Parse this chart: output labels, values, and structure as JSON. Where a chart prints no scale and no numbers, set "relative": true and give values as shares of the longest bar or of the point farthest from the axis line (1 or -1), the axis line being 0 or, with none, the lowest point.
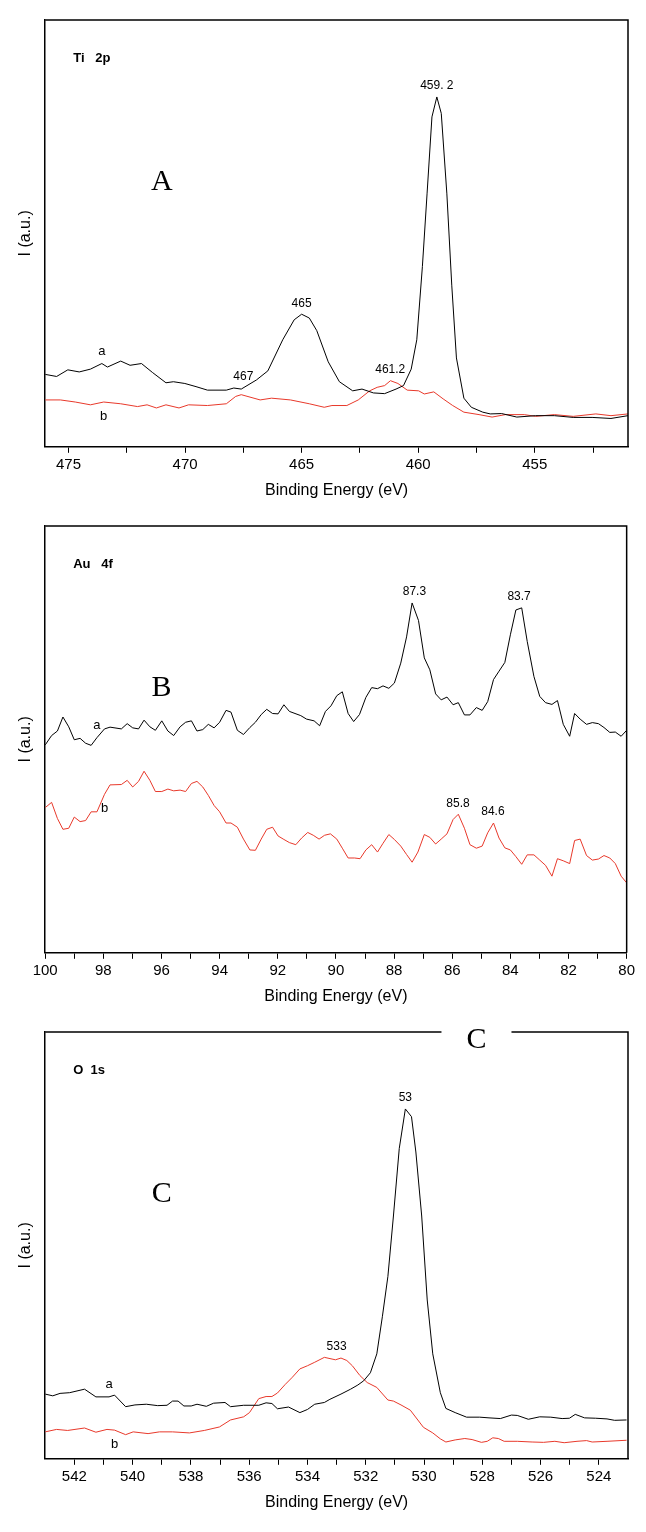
{
  "chart_data": [
    {
      "type": "line",
      "relative": true,
      "xlabel": "Binding Energy (eV)",
      "ylabel": "I (a.u.)",
      "tick_labels": "x",
      "xlim": [
        476,
        451
      ],
      "xticks": [
        475,
        {
          "value": 472.5,
          "label": null
        },
        470,
        {
          "value": 467.5,
          "label": null
        },
        465,
        {
          "value": 462.5,
          "label": null
        },
        460,
        {
          "value": 457.5,
          "label": null
        },
        455,
        {
          "value": 452.5,
          "label": null
        }
      ],
      "annotations": [
        "Ti   2p",
        "A",
        {
          "text": "459. 2",
          "x": 459.2,
          "y": 1
        },
        {
          "text": "465",
          "x": 465,
          "y": 0.379
        },
        {
          "text": "467",
          "x": 467.5,
          "y": 0.168
        },
        {
          "text": "461.2",
          "x": 461.2,
          "y": 0.189
        }
      ],
      "series": [
        {
          "name": "a",
          "color": "#000000",
          "x": [
            476.0,
            475.51,
            475.03,
            474.54,
            474.06,
            473.57,
            473.33,
            472.76,
            472.36,
            471.87,
            471.39,
            470.82,
            470.5,
            470.01,
            469.53,
            469.04,
            468.23,
            467.91,
            467.59,
            466.94,
            466.45,
            465.81,
            465.32,
            465.0,
            464.67,
            464.35,
            463.86,
            463.38,
            462.81,
            462.41,
            461.92,
            461.44,
            460.95,
            460.63,
            460.3,
            460.06,
            459.82,
            459.62,
            459.41,
            459.2,
            459.01,
            458.77,
            458.56,
            458.36,
            458.04,
            457.72,
            457.23,
            456.91,
            456.42,
            455.77,
            454.96,
            454.16,
            453.35,
            452.54,
            451.73,
            451.0
          ],
          "values": [
            0.207,
            0.201,
            0.22,
            0.214,
            0.222,
            0.238,
            0.228,
            0.245,
            0.233,
            0.238,
            0.212,
            0.183,
            0.186,
            0.181,
            0.172,
            0.162,
            0.162,
            0.168,
            0.165,
            0.191,
            0.217,
            0.306,
            0.363,
            0.379,
            0.368,
            0.332,
            0.243,
            0.186,
            0.16,
            0.165,
            0.154,
            0.152,
            0.165,
            0.175,
            0.222,
            0.306,
            0.515,
            0.723,
            0.943,
            1,
            0.953,
            0.723,
            0.462,
            0.254,
            0.139,
            0.113,
            0.099,
            0.094,
            0.095,
            0.085,
            0.089,
            0.089,
            0.084,
            0.084,
            0.081,
            0.089
          ]
        },
        {
          "name": "b",
          "color": "#e8392b",
          "x": [
            476.0,
            475.35,
            474.71,
            474.06,
            473.49,
            472.76,
            472.04,
            471.63,
            471.23,
            470.82,
            470.26,
            469.85,
            469.04,
            468.23,
            467.83,
            467.59,
            466.78,
            466.29,
            465.48,
            464.67,
            464.03,
            463.7,
            463.06,
            462.57,
            462.08,
            461.76,
            461.44,
            461.19,
            460.87,
            460.47,
            459.98,
            459.74,
            459.33,
            458.93,
            458.52,
            458.04,
            457.39,
            456.83,
            456.26,
            455.45,
            454.96,
            454.16,
            453.35,
            452.38,
            451.73,
            451.0
          ],
          "values": [
            0.134,
            0.134,
            0.128,
            0.12,
            0.128,
            0.123,
            0.115,
            0.12,
            0.111,
            0.12,
            0.111,
            0.12,
            0.118,
            0.123,
            0.144,
            0.149,
            0.134,
            0.139,
            0.134,
            0.123,
            0.113,
            0.118,
            0.118,
            0.134,
            0.16,
            0.17,
            0.175,
            0.189,
            0.181,
            0.162,
            0.16,
            0.151,
            0.157,
            0.137,
            0.118,
            0.099,
            0.092,
            0.085,
            0.092,
            0.092,
            0.087,
            0.092,
            0.087,
            0.094,
            0.089,
            0.094
          ]
        }
      ]
    },
    {
      "type": "line",
      "relative": true,
      "xlabel": "Binding Energy (eV)",
      "ylabel": "I (a.u.)",
      "tick_labels": "x",
      "xlim": [
        100,
        80
      ],
      "xticks": [
        100,
        {
          "value": 99,
          "label": null
        },
        98,
        {
          "value": 97,
          "label": null
        },
        96,
        {
          "value": 95,
          "label": null
        },
        94,
        {
          "value": 93,
          "label": null
        },
        92,
        {
          "value": 91,
          "label": null
        },
        90,
        {
          "value": 89,
          "label": null
        },
        88,
        {
          "value": 87,
          "label": null
        },
        86,
        {
          "value": 85,
          "label": null
        },
        84,
        {
          "value": 83,
          "label": null
        },
        82,
        {
          "value": 81,
          "label": null
        },
        80
      ],
      "annotations": [
        "Au   4f",
        "B",
        {
          "text": "87.3",
          "x": 87.3,
          "y": 1
        },
        {
          "text": "83.7",
          "x": 83.7,
          "y": 0.986
        },
        {
          "text": "85.8",
          "x": 85.8,
          "y": 0.396
        },
        {
          "text": "84.6",
          "x": 84.6,
          "y": 0.371
        }
      ],
      "series": [
        {
          "name": "a",
          "color": "#000000",
          "x": [
            100.0,
            99.78,
            99.58,
            99.39,
            99.19,
            99.0,
            98.8,
            98.61,
            98.42,
            98.22,
            97.96,
            97.77,
            97.38,
            97.18,
            96.99,
            96.79,
            96.6,
            96.4,
            96.21,
            95.99,
            95.78,
            95.58,
            95.36,
            95.17,
            94.97,
            94.78,
            94.58,
            94.39,
            94.19,
            94.0,
            93.78,
            93.61,
            93.39,
            93.18,
            92.96,
            92.77,
            92.57,
            92.38,
            92.18,
            91.99,
            91.79,
            91.6,
            91.21,
            91.01,
            90.75,
            90.56,
            90.36,
            90.17,
            89.97,
            89.78,
            89.58,
            89.39,
            89.19,
            88.97,
            88.77,
            88.57,
            88.38,
            88.18,
            87.99,
            87.77,
            87.57,
            87.38,
            87.16,
            86.96,
            86.77,
            86.57,
            86.38,
            86.18,
            85.97,
            85.79,
            85.58,
            85.39,
            85.17,
            84.97,
            84.78,
            84.58,
            84.39,
            84.19,
            84.0,
            83.81,
            83.61,
            83.42,
            83.19,
            82.99,
            82.79,
            82.57,
            82.38,
            82.18,
            81.96,
            81.79,
            81.6,
            81.38,
            81.18,
            80.97,
            80.78,
            80.58,
            80.39,
            80.19,
            80.0
          ],
          "values": [
            0.594,
            0.621,
            0.634,
            0.674,
            0.646,
            0.609,
            0.613,
            0.599,
            0.593,
            0.615,
            0.64,
            0.645,
            0.64,
            0.655,
            0.643,
            0.64,
            0.665,
            0.646,
            0.636,
            0.663,
            0.634,
            0.621,
            0.646,
            0.659,
            0.663,
            0.634,
            0.638,
            0.653,
            0.643,
            0.659,
            0.693,
            0.688,
            0.636,
            0.624,
            0.644,
            0.659,
            0.681,
            0.696,
            0.684,
            0.683,
            0.709,
            0.69,
            0.678,
            0.668,
            0.663,
            0.649,
            0.69,
            0.706,
            0.735,
            0.746,
            0.684,
            0.661,
            0.681,
            0.73,
            0.758,
            0.755,
            0.763,
            0.756,
            0.771,
            0.828,
            0.903,
            1,
            0.95,
            0.843,
            0.809,
            0.74,
            0.723,
            0.731,
            0.709,
            0.715,
            0.68,
            0.68,
            0.701,
            0.693,
            0.718,
            0.781,
            0.805,
            0.83,
            0.909,
            0.98,
            0.986,
            0.89,
            0.79,
            0.733,
            0.715,
            0.71,
            0.721,
            0.653,
            0.619,
            0.684,
            0.668,
            0.653,
            0.658,
            0.655,
            0.644,
            0.63,
            0.631,
            0.619,
            0.636
          ]
        },
        {
          "name": "b",
          "color": "#e8392b",
          "x": [
            100.0,
            99.78,
            99.58,
            99.39,
            99.19,
            99.0,
            98.8,
            98.61,
            98.42,
            98.22,
            97.96,
            97.77,
            97.38,
            97.18,
            96.99,
            96.79,
            96.6,
            96.4,
            96.21,
            95.99,
            95.78,
            95.58,
            95.36,
            95.17,
            94.97,
            94.78,
            94.58,
            94.39,
            94.19,
            94.0,
            93.78,
            93.61,
            93.39,
            93.18,
            92.96,
            92.77,
            92.57,
            92.38,
            92.18,
            91.99,
            91.79,
            91.6,
            91.38,
            91.18,
            90.97,
            90.78,
            90.58,
            90.39,
            90.19,
            89.97,
            89.78,
            89.58,
            89.36,
            89.17,
            88.97,
            88.77,
            88.57,
            88.38,
            88.18,
            87.99,
            87.77,
            87.57,
            87.38,
            87.18,
            86.96,
            86.77,
            86.57,
            86.38,
            86.18,
            85.97,
            85.79,
            85.58,
            85.39,
            85.17,
            84.97,
            84.78,
            84.58,
            84.39,
            84.19,
            84.0,
            83.81,
            83.61,
            83.42,
            83.19,
            82.99,
            82.79,
            82.57,
            82.38,
            82.18,
            81.96,
            81.79,
            81.6,
            81.38,
            81.18,
            80.97,
            80.78,
            80.58,
            80.39,
            80.19,
            80.0
          ],
          "values": [
            0.415,
            0.43,
            0.384,
            0.353,
            0.356,
            0.388,
            0.375,
            0.378,
            0.403,
            0.403,
            0.453,
            0.48,
            0.481,
            0.493,
            0.474,
            0.49,
            0.519,
            0.493,
            0.461,
            0.461,
            0.468,
            0.463,
            0.465,
            0.461,
            0.484,
            0.49,
            0.474,
            0.45,
            0.421,
            0.403,
            0.371,
            0.371,
            0.359,
            0.325,
            0.294,
            0.293,
            0.325,
            0.353,
            0.359,
            0.334,
            0.324,
            0.315,
            0.309,
            0.328,
            0.344,
            0.336,
            0.325,
            0.336,
            0.34,
            0.325,
            0.299,
            0.271,
            0.271,
            0.269,
            0.294,
            0.309,
            0.288,
            0.313,
            0.338,
            0.324,
            0.305,
            0.281,
            0.259,
            0.288,
            0.338,
            0.33,
            0.311,
            0.325,
            0.34,
            0.381,
            0.396,
            0.356,
            0.309,
            0.299,
            0.305,
            0.343,
            0.371,
            0.328,
            0.3,
            0.294,
            0.275,
            0.253,
            0.28,
            0.28,
            0.265,
            0.25,
            0.219,
            0.269,
            0.263,
            0.255,
            0.321,
            0.325,
            0.278,
            0.265,
            0.268,
            0.278,
            0.271,
            0.255,
            0.219,
            0.2
          ]
        }
      ]
    },
    {
      "type": "line",
      "relative": true,
      "xlabel": "Binding Energy (eV)",
      "ylabel": "I (a.u.)",
      "tick_labels": "x",
      "xlim": [
        543,
        523
      ],
      "xticks": [
        542,
        {
          "value": 541,
          "label": null
        },
        540,
        {
          "value": 539,
          "label": null
        },
        538,
        {
          "value": 537,
          "label": null
        },
        536,
        {
          "value": 535,
          "label": null
        },
        534,
        {
          "value": 533,
          "label": null
        },
        532,
        {
          "value": 531,
          "label": null
        },
        530,
        {
          "value": 529,
          "label": null
        },
        528,
        {
          "value": 527,
          "label": null
        },
        526,
        {
          "value": 525,
          "label": null
        },
        524
      ],
      "annotations": [
        "O  1s",
        "C",
        "C",
        {
          "text": "53",
          "x": 530.64,
          "y": 1
        },
        {
          "text": "533",
          "x": 533,
          "y": 0.29
        }
      ],
      "series": [
        {
          "name": "a",
          "color": "#000000",
          "x": [
            543.0,
            542.74,
            542.49,
            542.16,
            541.65,
            541.26,
            540.81,
            540.62,
            540.24,
            539.92,
            539.53,
            539.14,
            538.82,
            538.63,
            538.44,
            538.24,
            537.99,
            537.79,
            537.47,
            537.22,
            536.83,
            536.64,
            536.19,
            535.67,
            535.42,
            535.22,
            535.03,
            534.65,
            534.26,
            534.0,
            533.75,
            533.42,
            533.23,
            532.85,
            532.52,
            532.27,
            532.07,
            531.84,
            531.62,
            531.43,
            531.24,
            531.05,
            530.85,
            530.64,
            530.43,
            530.28,
            530.08,
            529.89,
            529.7,
            529.44,
            529.25,
            528.93,
            528.54,
            528.09,
            527.77,
            527.38,
            527.0,
            526.8,
            526.42,
            526.03,
            525.65,
            525.26,
            525.01,
            524.81,
            524.49,
            524.11,
            523.72,
            523.46,
            523.05
          ],
          "values": [
            0.185,
            0.18,
            0.187,
            0.189,
            0.199,
            0.177,
            0.177,
            0.182,
            0.149,
            0.154,
            0.156,
            0.152,
            0.153,
            0.165,
            0.165,
            0.151,
            0.151,
            0.156,
            0.15,
            0.159,
            0.161,
            0.149,
            0.153,
            0.153,
            0.16,
            0.158,
            0.143,
            0.148,
            0.132,
            0.141,
            0.156,
            0.161,
            0.17,
            0.185,
            0.199,
            0.211,
            0.223,
            0.246,
            0.3,
            0.406,
            0.521,
            0.694,
            0.887,
            1,
            0.978,
            0.877,
            0.694,
            0.454,
            0.3,
            0.189,
            0.144,
            0.132,
            0.119,
            0.119,
            0.117,
            0.115,
            0.125,
            0.124,
            0.113,
            0.12,
            0.119,
            0.115,
            0.116,
            0.127,
            0.117,
            0.116,
            0.114,
            0.11,
            0.111
          ]
        },
        {
          "name": "b",
          "color": "#e8392b",
          "x": [
            543.0,
            542.61,
            542.23,
            541.65,
            541.26,
            540.88,
            540.62,
            540.24,
            539.98,
            539.47,
            539.08,
            538.63,
            538.05,
            537.54,
            537.02,
            536.64,
            536.19,
            535.99,
            535.67,
            535.42,
            535.22,
            535.03,
            534.77,
            534.52,
            534.26,
            534.0,
            533.75,
            533.42,
            533.04,
            532.85,
            532.65,
            532.46,
            532.2,
            531.95,
            531.62,
            531.24,
            531.05,
            530.79,
            530.47,
            530.02,
            529.7,
            529.44,
            529.25,
            528.93,
            528.6,
            528.35,
            528.03,
            527.83,
            527.64,
            527.45,
            527.25,
            526.8,
            526.29,
            525.9,
            525.51,
            525.19,
            524.75,
            524.42,
            524.23,
            523.72,
            523.05
          ],
          "values": [
            0.077,
            0.084,
            0.081,
            0.088,
            0.076,
            0.084,
            0.082,
            0.069,
            0.077,
            0.072,
            0.077,
            0.077,
            0.074,
            0.081,
            0.091,
            0.111,
            0.12,
            0.132,
            0.172,
            0.178,
            0.178,
            0.188,
            0.212,
            0.233,
            0.257,
            0.266,
            0.276,
            0.29,
            0.283,
            0.288,
            0.281,
            0.266,
            0.238,
            0.218,
            0.204,
            0.168,
            0.165,
            0.154,
            0.139,
            0.09,
            0.074,
            0.057,
            0.048,
            0.054,
            0.058,
            0.055,
            0.047,
            0.05,
            0.06,
            0.058,
            0.05,
            0.05,
            0.048,
            0.047,
            0.05,
            0.046,
            0.05,
            0.052,
            0.048,
            0.05,
            0.053
          ]
        }
      ]
    }
  ]
}
